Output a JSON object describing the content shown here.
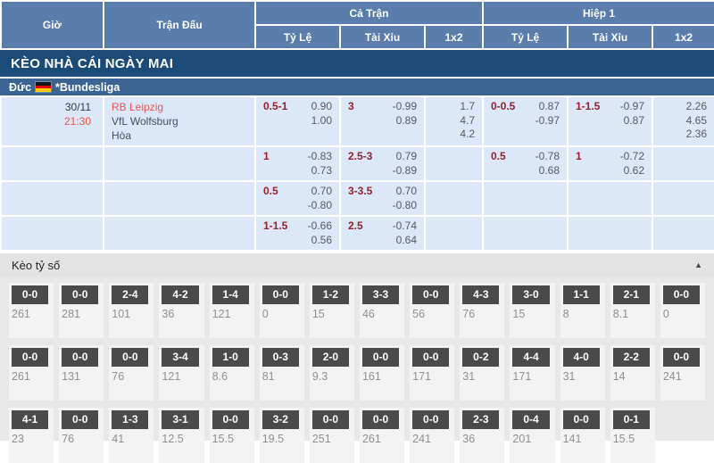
{
  "colors": {
    "header_blue": "#5b7dab",
    "navy_bar": "#1d4b77",
    "league_blue": "#3c6493",
    "odds_cell_blue": "#dce8f7",
    "handicap_maroon": "#93202c",
    "accent_red": "#ee5250",
    "score_chip_gray": "#4a4a4a"
  },
  "table_header": {
    "time": "Giờ",
    "match": "Trận Đấu",
    "full_time": "Cả Trận",
    "first_half": "Hiệp 1",
    "handicap": "Tỷ Lệ",
    "over_under": "Tài Xỉu",
    "one_x_two": "1x2"
  },
  "section_title": "KÈO NHÀ CÁI NGÀY MAI",
  "league": {
    "country": "Đức",
    "flag_icon": "germany-flag-icon",
    "name": "*Bundesliga"
  },
  "odds_rows": [
    {
      "time": [
        "30/11",
        "21:30"
      ],
      "teams": [
        "RB Leipzig",
        "VfL Wolfsburg",
        "Hòa"
      ],
      "cells": [
        {
          "line": "0.5-1",
          "values": [
            "0.90",
            "1.00"
          ]
        },
        {
          "line": "3",
          "values": [
            "-0.99",
            "0.89"
          ]
        },
        {
          "values": [
            "1.7",
            "4.7",
            "4.2"
          ]
        },
        {
          "line": "0-0.5",
          "values": [
            "0.87",
            "-0.97"
          ]
        },
        {
          "line": "1-1.5",
          "values": [
            "-0.97",
            "0.87"
          ]
        },
        {
          "values": [
            "2.26",
            "4.65",
            "2.36"
          ]
        }
      ]
    },
    {
      "time": [],
      "teams": [],
      "cells": [
        {
          "line": "1",
          "values": [
            "-0.83",
            "0.73"
          ]
        },
        {
          "line": "2.5-3",
          "values": [
            "0.79",
            "-0.89"
          ]
        },
        {
          "values": []
        },
        {
          "line": "0.5",
          "values": [
            "-0.78",
            "0.68"
          ]
        },
        {
          "line": "1",
          "values": [
            "-0.72",
            "0.62"
          ]
        },
        {
          "values": []
        }
      ]
    },
    {
      "time": [],
      "teams": [],
      "cells": [
        {
          "line": "0.5",
          "values": [
            "0.70",
            "-0.80"
          ]
        },
        {
          "line": "3-3.5",
          "values": [
            "0.70",
            "-0.80"
          ]
        },
        {
          "values": []
        },
        {
          "values": []
        },
        {
          "values": []
        },
        {
          "values": []
        }
      ]
    },
    {
      "time": [],
      "teams": [],
      "cells": [
        {
          "line": "1-1.5",
          "values": [
            "-0.66",
            "0.56"
          ]
        },
        {
          "line": "2.5",
          "values": [
            "-0.74",
            "0.64"
          ]
        },
        {
          "values": []
        },
        {
          "values": []
        },
        {
          "values": []
        },
        {
          "values": []
        }
      ]
    }
  ],
  "score_section": {
    "title": "Kèo tỷ số",
    "collapse_icon": "▲",
    "rows": [
      [
        {
          "score": "0-0",
          "odds": "261"
        },
        {
          "score": "0-0",
          "odds": "281"
        },
        {
          "score": "2-4",
          "odds": "101"
        },
        {
          "score": "4-2",
          "odds": "36"
        },
        {
          "score": "1-4",
          "odds": "121"
        },
        {
          "score": "0-0",
          "odds": "0"
        },
        {
          "score": "1-2",
          "odds": "15"
        },
        {
          "score": "3-3",
          "odds": "46"
        },
        {
          "score": "0-0",
          "odds": "56"
        },
        {
          "score": "4-3",
          "odds": "76"
        },
        {
          "score": "3-0",
          "odds": "15"
        },
        {
          "score": "1-1",
          "odds": "8"
        },
        {
          "score": "2-1",
          "odds": "8.1"
        },
        {
          "score": "0-0",
          "odds": "0"
        }
      ],
      [
        {
          "score": "0-0",
          "odds": "261"
        },
        {
          "score": "0-0",
          "odds": "131"
        },
        {
          "score": "0-0",
          "odds": "76"
        },
        {
          "score": "3-4",
          "odds": "121"
        },
        {
          "score": "1-0",
          "odds": "8.6"
        },
        {
          "score": "0-3",
          "odds": "81"
        },
        {
          "score": "2-0",
          "odds": "9.3"
        },
        {
          "score": "0-0",
          "odds": "161"
        },
        {
          "score": "0-0",
          "odds": "171"
        },
        {
          "score": "0-2",
          "odds": "31"
        },
        {
          "score": "4-4",
          "odds": "171"
        },
        {
          "score": "4-0",
          "odds": "31"
        },
        {
          "score": "2-2",
          "odds": "14"
        },
        {
          "score": "0-0",
          "odds": "241"
        }
      ],
      [
        {
          "score": "4-1",
          "odds": "23"
        },
        {
          "score": "0-0",
          "odds": "76"
        },
        {
          "score": "1-3",
          "odds": "41"
        },
        {
          "score": "3-1",
          "odds": "12.5"
        },
        {
          "score": "0-0",
          "odds": "15.5"
        },
        {
          "score": "3-2",
          "odds": "19.5"
        },
        {
          "score": "0-0",
          "odds": "251"
        },
        {
          "score": "0-0",
          "odds": "261"
        },
        {
          "score": "0-0",
          "odds": "241"
        },
        {
          "score": "2-3",
          "odds": "36"
        },
        {
          "score": "0-4",
          "odds": "201"
        },
        {
          "score": "0-0",
          "odds": "141"
        },
        {
          "score": "0-1",
          "odds": "15.5"
        },
        null
      ]
    ]
  }
}
